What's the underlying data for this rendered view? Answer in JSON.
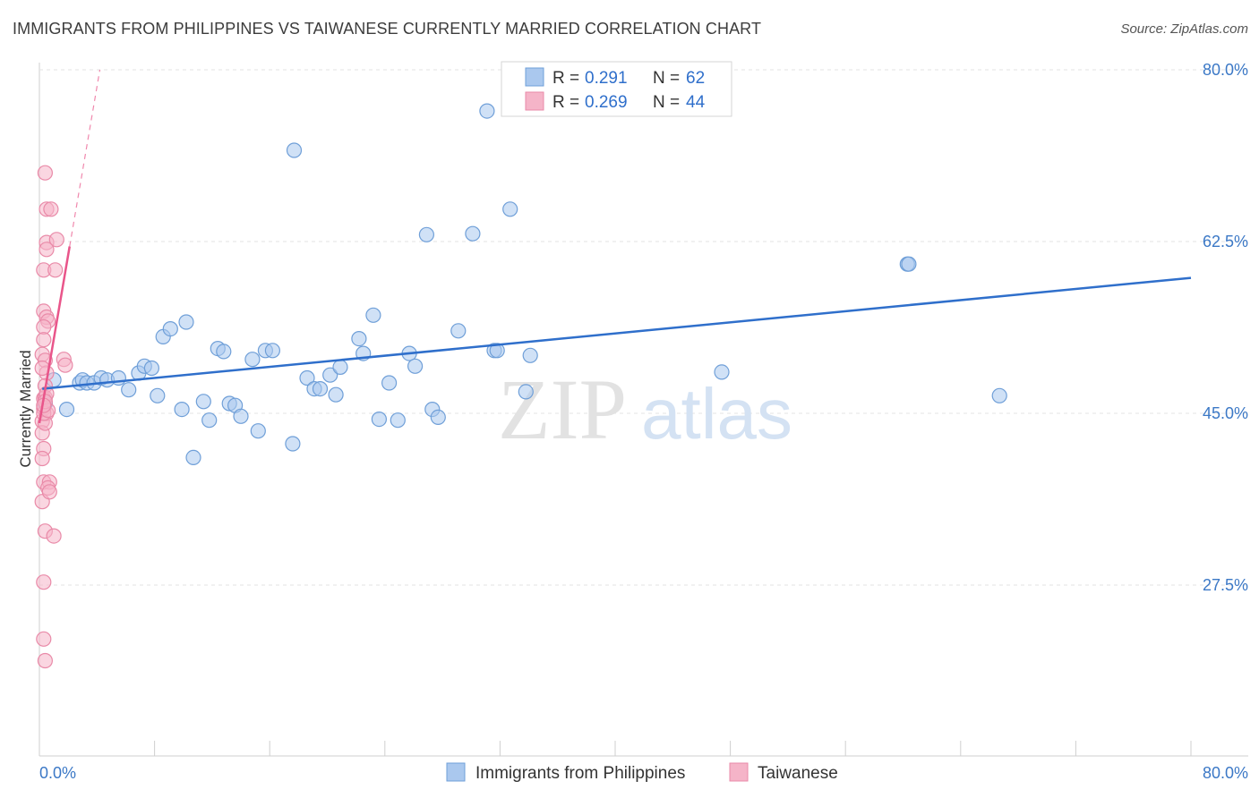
{
  "chart_data": {
    "type": "scatter",
    "title": "IMMIGRANTS FROM PHILIPPINES VS TAIWANESE CURRENTLY MARRIED CORRELATION CHART",
    "source": "Source: ZipAtlas.com",
    "xlabel": "",
    "ylabel": "Currently Married",
    "xlim": [
      0,
      80
    ],
    "ylim": [
      10,
      82
    ],
    "x_tick_labels": [
      "0.0%",
      "80.0%"
    ],
    "y_ticks": [
      27.5,
      45.0,
      62.5,
      80.0
    ],
    "y_tick_labels": [
      "27.5%",
      "45.0%",
      "62.5%",
      "80.0%"
    ],
    "grid": true,
    "watermark": {
      "zip": "ZIP",
      "atlas": "atlas"
    },
    "legend": {
      "position": "top-center",
      "r_label": "R =",
      "n_label": "N =",
      "entries": [
        {
          "name": "Immigrants from Philippines",
          "r": "0.291",
          "n": "62"
        },
        {
          "name": "Taiwanese",
          "r": "0.269",
          "n": "44"
        }
      ]
    },
    "series": [
      {
        "name": "Immigrants from Philippines",
        "color": "#aac8ee",
        "stroke": "#6f9fd8",
        "line_color": "#2f6fcb",
        "trend": {
          "x0": 0.2,
          "y0": 47.5,
          "x1": 80.0,
          "y1": 58.8,
          "dashed": false
        },
        "points": [
          [
            0.4,
            46.0
          ],
          [
            1.0,
            48.4
          ],
          [
            1.9,
            45.4
          ],
          [
            2.8,
            48.1
          ],
          [
            3.0,
            48.4
          ],
          [
            3.3,
            48.1
          ],
          [
            3.8,
            48.1
          ],
          [
            4.3,
            48.6
          ],
          [
            4.7,
            48.4
          ],
          [
            5.5,
            48.6
          ],
          [
            6.2,
            47.4
          ],
          [
            6.9,
            49.1
          ],
          [
            7.3,
            49.8
          ],
          [
            7.8,
            49.6
          ],
          [
            8.2,
            46.8
          ],
          [
            8.6,
            52.8
          ],
          [
            9.1,
            53.6
          ],
          [
            9.9,
            45.4
          ],
          [
            10.2,
            54.3
          ],
          [
            10.7,
            40.5
          ],
          [
            11.4,
            46.2
          ],
          [
            11.8,
            44.3
          ],
          [
            12.4,
            51.6
          ],
          [
            12.8,
            51.3
          ],
          [
            13.2,
            46.0
          ],
          [
            13.6,
            45.8
          ],
          [
            14.0,
            44.7
          ],
          [
            14.8,
            50.5
          ],
          [
            15.2,
            43.2
          ],
          [
            15.7,
            51.4
          ],
          [
            16.2,
            51.4
          ],
          [
            17.6,
            41.9
          ],
          [
            17.7,
            71.8
          ],
          [
            18.6,
            48.6
          ],
          [
            19.1,
            47.5
          ],
          [
            19.5,
            47.5
          ],
          [
            20.2,
            48.9
          ],
          [
            20.6,
            46.9
          ],
          [
            20.9,
            49.7
          ],
          [
            22.2,
            52.6
          ],
          [
            22.5,
            51.1
          ],
          [
            23.2,
            55.0
          ],
          [
            23.6,
            44.4
          ],
          [
            24.3,
            48.1
          ],
          [
            24.9,
            44.3
          ],
          [
            25.7,
            51.1
          ],
          [
            26.1,
            49.8
          ],
          [
            26.9,
            63.2
          ],
          [
            27.3,
            45.4
          ],
          [
            27.7,
            44.6
          ],
          [
            29.1,
            53.4
          ],
          [
            30.1,
            63.3
          ],
          [
            31.1,
            75.8
          ],
          [
            31.6,
            51.4
          ],
          [
            31.8,
            51.4
          ],
          [
            32.7,
            65.8
          ],
          [
            33.8,
            47.2
          ],
          [
            34.1,
            50.9
          ],
          [
            60.3,
            60.2
          ],
          [
            60.4,
            60.2
          ],
          [
            47.4,
            49.2
          ],
          [
            66.7,
            46.8
          ]
        ]
      },
      {
        "name": "Taiwanese",
        "color": "#f5b4c8",
        "stroke": "#e98aa8",
        "line_color": "#e9558a",
        "trend": {
          "x0": 0.0,
          "y0": 44.0,
          "x1": 2.1,
          "y1": 62.0,
          "dashed": false
        },
        "trend_extension": {
          "x0": 2.1,
          "y0": 62.0,
          "x1": 4.2,
          "y1": 80.0,
          "dashed": true
        },
        "points": [
          [
            0.2,
            51.0
          ],
          [
            0.3,
            46.5
          ],
          [
            0.3,
            45.5
          ],
          [
            0.2,
            44.2
          ],
          [
            0.2,
            43.0
          ],
          [
            0.3,
            41.4
          ],
          [
            0.2,
            40.4
          ],
          [
            0.3,
            38.0
          ],
          [
            0.2,
            36.0
          ],
          [
            0.4,
            33.0
          ],
          [
            0.3,
            27.8
          ],
          [
            0.3,
            22.0
          ],
          [
            0.4,
            19.8
          ],
          [
            0.4,
            69.5
          ],
          [
            0.5,
            65.8
          ],
          [
            0.8,
            65.8
          ],
          [
            0.5,
            62.4
          ],
          [
            0.5,
            61.7
          ],
          [
            0.3,
            59.6
          ],
          [
            1.2,
            62.7
          ],
          [
            1.1,
            59.6
          ],
          [
            0.3,
            55.4
          ],
          [
            0.5,
            54.8
          ],
          [
            0.6,
            54.4
          ],
          [
            0.3,
            53.8
          ],
          [
            0.3,
            52.5
          ],
          [
            0.4,
            50.4
          ],
          [
            0.5,
            49.1
          ],
          [
            0.4,
            47.8
          ],
          [
            0.4,
            46.6
          ],
          [
            0.5,
            45.0
          ],
          [
            0.4,
            44.0
          ],
          [
            0.7,
            38.0
          ],
          [
            0.6,
            37.4
          ],
          [
            0.7,
            37.0
          ],
          [
            1.0,
            32.5
          ],
          [
            1.7,
            50.5
          ],
          [
            1.8,
            49.9
          ],
          [
            0.3,
            45.0
          ],
          [
            0.6,
            45.3
          ],
          [
            0.2,
            49.6
          ],
          [
            0.5,
            47.0
          ],
          [
            0.4,
            46.2
          ],
          [
            0.3,
            45.8
          ]
        ]
      }
    ]
  }
}
